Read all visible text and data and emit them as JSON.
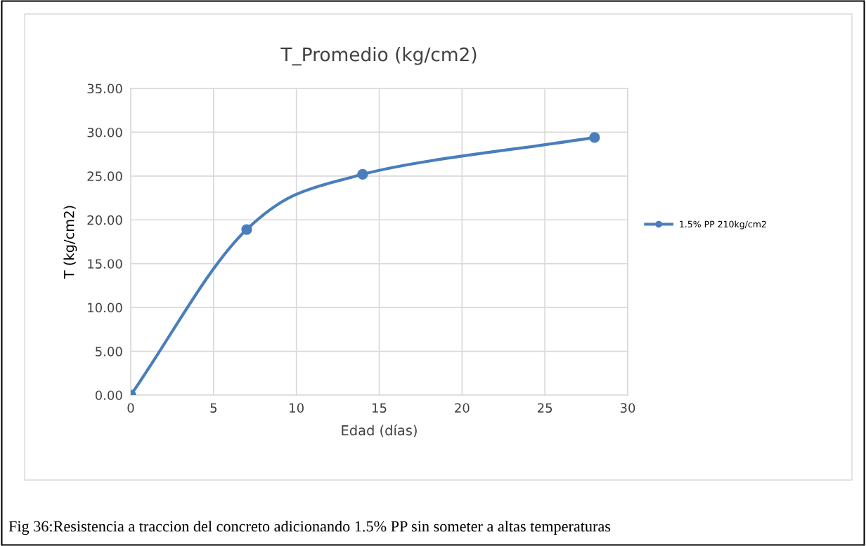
{
  "chart_data": {
    "type": "line",
    "title": "T_Promedio (kg/cm2)",
    "xlabel": "Edad (días)",
    "ylabel": "T (kg/cm2)",
    "x": [
      0,
      7,
      14,
      28
    ],
    "series": [
      {
        "name": "1.5% PP 210kg/cm2",
        "color": "#4a7ebb",
        "values": [
          0,
          18.9,
          25.2,
          29.4
        ]
      }
    ],
    "xlim": [
      0,
      30
    ],
    "xticks": [
      0,
      5,
      10,
      15,
      20,
      25,
      30
    ],
    "ylim": [
      0,
      35
    ],
    "yticks": [
      {
        "value": 0,
        "label": "0.00"
      },
      {
        "value": 5,
        "label": "5.00"
      },
      {
        "value": 10,
        "label": "10.00"
      },
      {
        "value": 15,
        "label": "15.00"
      },
      {
        "value": 20,
        "label": "20.00"
      },
      {
        "value": 25,
        "label": "25.00"
      },
      {
        "value": 30,
        "label": "30.00"
      },
      {
        "value": 35,
        "label": "35.00"
      }
    ],
    "grid": true,
    "legend": "right",
    "marker": "circle",
    "line_style": "solid",
    "annotations": [
      "Fig 36:Resistencia a traccion del concreto adicionando 1.5% PP sin someter a altas temperaturas"
    ]
  }
}
